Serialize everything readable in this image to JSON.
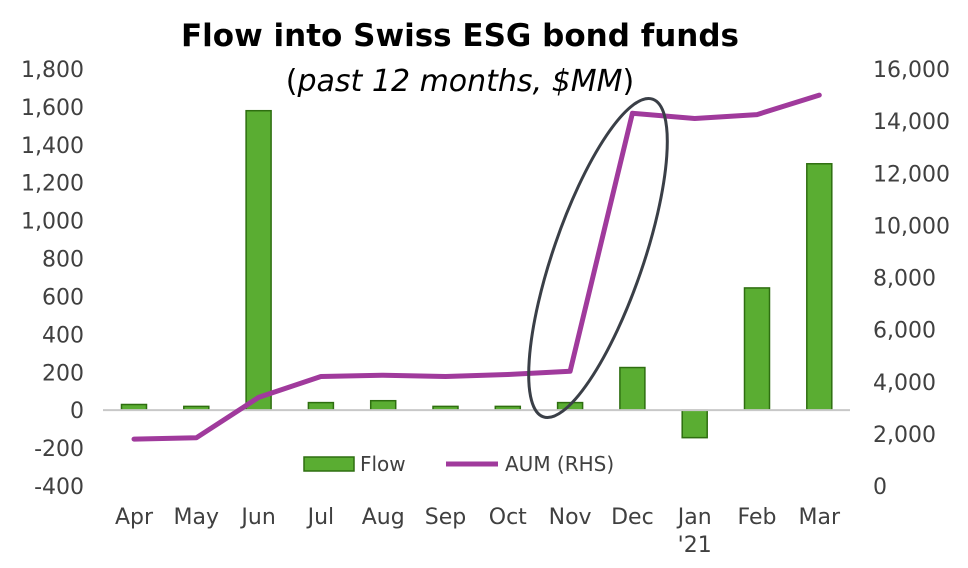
{
  "chart_data": {
    "type": "bar+line",
    "title": "Flow into Swiss ESG bond funds",
    "subtitle_pre": "(",
    "subtitle_italic": "past 12 months, $MM",
    "subtitle_post": ")",
    "categories": [
      "Apr",
      "May",
      "Jun",
      "Jul",
      "Aug",
      "Sep",
      "Oct",
      "Nov",
      "Dec",
      "Jan '21",
      "Feb",
      "Mar"
    ],
    "category_labels": [
      [
        "Apr"
      ],
      [
        "May"
      ],
      [
        "Jun"
      ],
      [
        "Jul"
      ],
      [
        "Aug"
      ],
      [
        "Sep"
      ],
      [
        "Oct"
      ],
      [
        "Nov"
      ],
      [
        "Dec"
      ],
      [
        "Jan",
        "'21"
      ],
      [
        "Feb"
      ],
      [
        "Mar"
      ]
    ],
    "series": [
      {
        "name": "Flow",
        "type": "bar",
        "axis": "left",
        "color": "#5aad32",
        "border": "#2e6e10",
        "values": [
          30,
          20,
          1580,
          40,
          50,
          20,
          20,
          40,
          225,
          -145,
          645,
          1300
        ]
      },
      {
        "name": "AUM (RHS)",
        "type": "line",
        "axis": "right",
        "color": "#a03a9c",
        "values": [
          1800,
          1850,
          3400,
          4200,
          4250,
          4200,
          4280,
          4400,
          14300,
          14100,
          14250,
          15000
        ]
      }
    ],
    "y_left": {
      "min": -400,
      "max": 1800,
      "step": 200,
      "tick_labels": [
        "-400",
        "-200",
        "0",
        "200",
        "400",
        "600",
        "800",
        "1,000",
        "1,200",
        "1,400",
        "1,600",
        "1,800"
      ]
    },
    "y_right": {
      "min": 0,
      "max": 16000,
      "step": 2000,
      "tick_labels": [
        "0",
        "2,000",
        "4,000",
        "6,000",
        "8,000",
        "10,000",
        "12,000",
        "14,000",
        "16,000"
      ]
    },
    "legend": {
      "position": "bottom-center-inside",
      "items": [
        "Flow",
        "AUM (RHS)"
      ]
    },
    "annotation": {
      "type": "ellipse",
      "highlights": "Nov-Dec AUM jump",
      "color": "#3a3f47"
    },
    "grid": false,
    "colors": {
      "axis": "#c8c8c8",
      "text": "#404040"
    }
  }
}
